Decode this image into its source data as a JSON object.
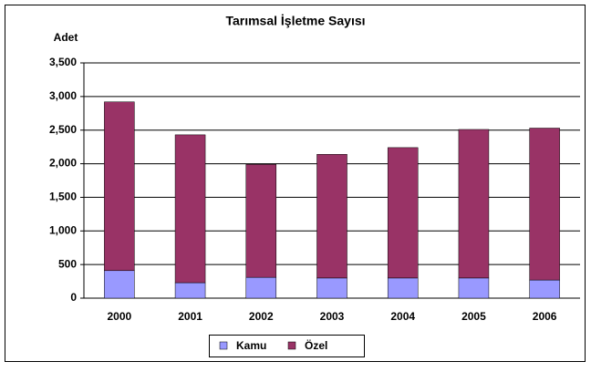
{
  "chart_data": {
    "type": "stacked_bar",
    "title": "Tarımsal İşletme Sayısı",
    "y_label": "Adet",
    "categories": [
      "2000",
      "2001",
      "2002",
      "2003",
      "2004",
      "2005",
      "2006"
    ],
    "series": [
      {
        "name": "Kamu",
        "color": "#9999ff",
        "values": [
          410,
          230,
          310,
          300,
          300,
          300,
          270
        ]
      },
      {
        "name": "Özel",
        "color": "#993366",
        "values": [
          2510,
          2200,
          1680,
          1840,
          1940,
          2210,
          2260
        ]
      }
    ],
    "ylim": [
      0,
      3500
    ],
    "yticks": [
      0,
      500,
      {
        "value": 1000,
        "label": "1,000"
      },
      {
        "value": 1500,
        "label": "1,500"
      },
      {
        "value": 2000,
        "label": "2,000"
      },
      {
        "value": 2500,
        "label": "2,500"
      },
      {
        "value": 3000,
        "label": "3,000"
      },
      {
        "value": 3500,
        "label": "3,500"
      }
    ],
    "grid": true,
    "legend": "bottom"
  }
}
